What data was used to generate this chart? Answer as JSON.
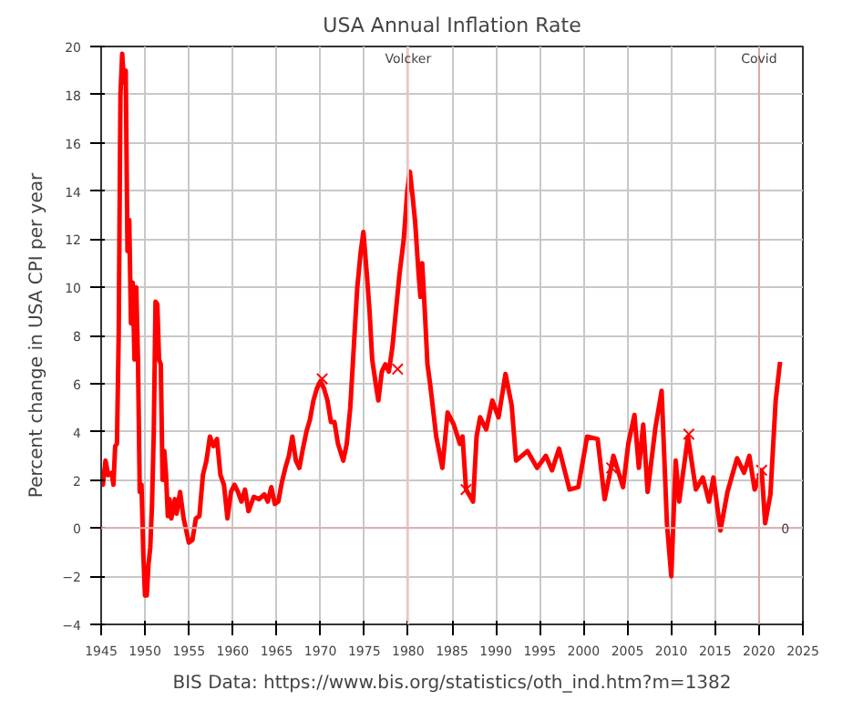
{
  "chart_data": {
    "type": "line",
    "title": "USA Annual Inflation Rate",
    "ylabel": "Percent change in USA CPI per year",
    "xlim": [
      1945,
      2025
    ],
    "ylim": [
      -4,
      20
    ],
    "xticks": [
      1945,
      1950,
      1955,
      1960,
      1965,
      1970,
      1975,
      1980,
      1985,
      1990,
      1995,
      2000,
      2005,
      2010,
      2015,
      2020,
      2025
    ],
    "yticks": [
      -4,
      -2,
      0,
      2,
      4,
      6,
      8,
      10,
      12,
      14,
      16,
      18,
      20
    ],
    "grid": true,
    "series": [
      {
        "color": "#ff0000",
        "line_style": "solid",
        "x": [
          1945.0,
          1945.2,
          1945.5,
          1945.8,
          1946.2,
          1946.4,
          1946.6,
          1946.8,
          1947.0,
          1947.2,
          1947.4,
          1947.6,
          1947.8,
          1948.0,
          1948.2,
          1948.4,
          1948.6,
          1948.8,
          1949.0,
          1949.2,
          1949.4,
          1949.6,
          1949.8,
          1950.0,
          1950.2,
          1950.4,
          1950.6,
          1950.8,
          1951.0,
          1951.2,
          1951.4,
          1951.6,
          1951.8,
          1952.0,
          1952.2,
          1952.4,
          1952.6,
          1952.8,
          1953.0,
          1953.4,
          1953.6,
          1954.0,
          1954.4,
          1955.0,
          1955.4,
          1955.8,
          1956.2,
          1956.6,
          1957.0,
          1957.4,
          1957.8,
          1958.2,
          1958.6,
          1959.0,
          1959.4,
          1959.8,
          1960.2,
          1960.6,
          1961.0,
          1961.4,
          1961.8,
          1962.4,
          1963.0,
          1963.6,
          1964.0,
          1964.4,
          1964.8,
          1965.2,
          1965.6,
          1966.0,
          1966.4,
          1966.8,
          1967.2,
          1967.6,
          1968.0,
          1968.4,
          1968.8,
          1969.2,
          1969.6,
          1970.0,
          1970.4,
          1970.8,
          1971.2,
          1971.6,
          1972.0,
          1972.6,
          1973.0,
          1973.4,
          1973.8,
          1974.2,
          1974.6,
          1974.9,
          1975.3,
          1975.6,
          1975.9,
          1976.3,
          1976.6,
          1977.0,
          1977.4,
          1977.8,
          1978.2,
          1978.6,
          1979.0,
          1979.5,
          1979.9,
          1980.2,
          1980.5,
          1980.8,
          1981.2,
          1981.4,
          1981.6,
          1981.9,
          1982.2,
          1982.5,
          1983.2,
          1983.9,
          1984.5,
          1985.2,
          1985.9,
          1986.2,
          1986.6,
          1987.4,
          1987.8,
          1988.2,
          1988.9,
          1989.6,
          1990.3,
          1991.1,
          1991.8,
          1992.3,
          1993.6,
          1994.7,
          1995.7,
          1996.4,
          1997.2,
          1998.4,
          1999.4,
          2000.4,
          2001.6,
          2002.4,
          2003.4,
          2004.5,
          2005.1,
          2005.8,
          2006.3,
          2006.8,
          2007.3,
          2008.2,
          2008.9,
          2009.5,
          2010.0,
          2010.5,
          2010.9,
          2011.9,
          2012.8,
          2013.6,
          2014.3,
          2014.8,
          2015.6,
          2016.4,
          2017.5,
          2018.3,
          2018.9,
          2019.5,
          2020.3,
          2020.7,
          2021.3,
          2021.9,
          2022.4
        ],
        "values": [
          2.2,
          1.8,
          2.8,
          2.2,
          2.3,
          1.8,
          3.4,
          3.5,
          8,
          18,
          19.7,
          18.5,
          19,
          11.5,
          12.8,
          8.5,
          10.2,
          7,
          10,
          7,
          1.5,
          1.8,
          -1,
          -2.8,
          -2.8,
          -1.5,
          -0.8,
          1,
          4,
          9.4,
          9.3,
          7,
          6.8,
          2,
          3.2,
          2.2,
          0.5,
          1.2,
          0.4,
          1.2,
          0.6,
          1.5,
          0.4,
          -0.6,
          -0.5,
          0.4,
          0.5,
          2.2,
          2.8,
          3.8,
          3.4,
          3.7,
          2.2,
          1.8,
          0.4,
          1.5,
          1.8,
          1.5,
          1.1,
          1.6,
          0.7,
          1.3,
          1.2,
          1.4,
          1.1,
          1.7,
          1.0,
          1.1,
          1.9,
          2.5,
          3.0,
          3.8,
          2.8,
          2.5,
          3.3,
          4.0,
          4.5,
          5.3,
          5.8,
          6.1,
          5.8,
          5.3,
          4.4,
          4.4,
          3.5,
          2.8,
          3.5,
          5.0,
          7.5,
          10,
          11.5,
          12.3,
          10.5,
          9.0,
          7.0,
          6.0,
          5.3,
          6.5,
          6.8,
          6.5,
          7.5,
          9.0,
          10.5,
          12.0,
          14.0,
          14.8,
          13.8,
          12.7,
          10.5,
          9.6,
          11.0,
          9.0,
          6.8,
          6.0,
          3.8,
          2.5,
          4.8,
          4.3,
          3.5,
          3.8,
          1.6,
          1.1,
          3.8,
          4.6,
          4.1,
          5.3,
          4.6,
          6.4,
          5.1,
          2.8,
          3.2,
          2.5,
          3.0,
          2.4,
          3.3,
          1.6,
          1.7,
          3.8,
          3.7,
          1.2,
          3.0,
          1.7,
          3.5,
          4.7,
          2.5,
          4.3,
          1.5,
          4.2,
          5.7,
          0.2,
          -2.0,
          2.8,
          1.1,
          3.8,
          1.6,
          2.1,
          1.1,
          2.1,
          -0.1,
          1.5,
          2.9,
          2.3,
          3.0,
          1.6,
          2.4,
          0.2,
          1.4,
          5.3,
          6.9
        ]
      },
      {
        "type": "scatter",
        "color": "#ff0000",
        "marker": "cross",
        "x": [
          1970.2,
          1978.8,
          1986.6,
          2003.2,
          2012.0,
          2020.3
        ],
        "values": [
          6.2,
          6.6,
          1.6,
          2.5,
          3.9,
          2.4
        ]
      }
    ],
    "ref_lines": [
      {
        "axis": "x",
        "value": 1980,
        "label": "Volcker",
        "color": "#f8c8c8"
      },
      {
        "axis": "x",
        "value": 2020,
        "label": "Covid",
        "color": "#d8a8a8"
      },
      {
        "axis": "y",
        "value": 0,
        "color": "#e0b0b0"
      }
    ],
    "annotations": [
      {
        "text": "0",
        "x": 2023,
        "y": 0
      },
      "BIS Data: https://www.bis.org/statistics/oth_ind.htm?m=1382"
    ]
  }
}
